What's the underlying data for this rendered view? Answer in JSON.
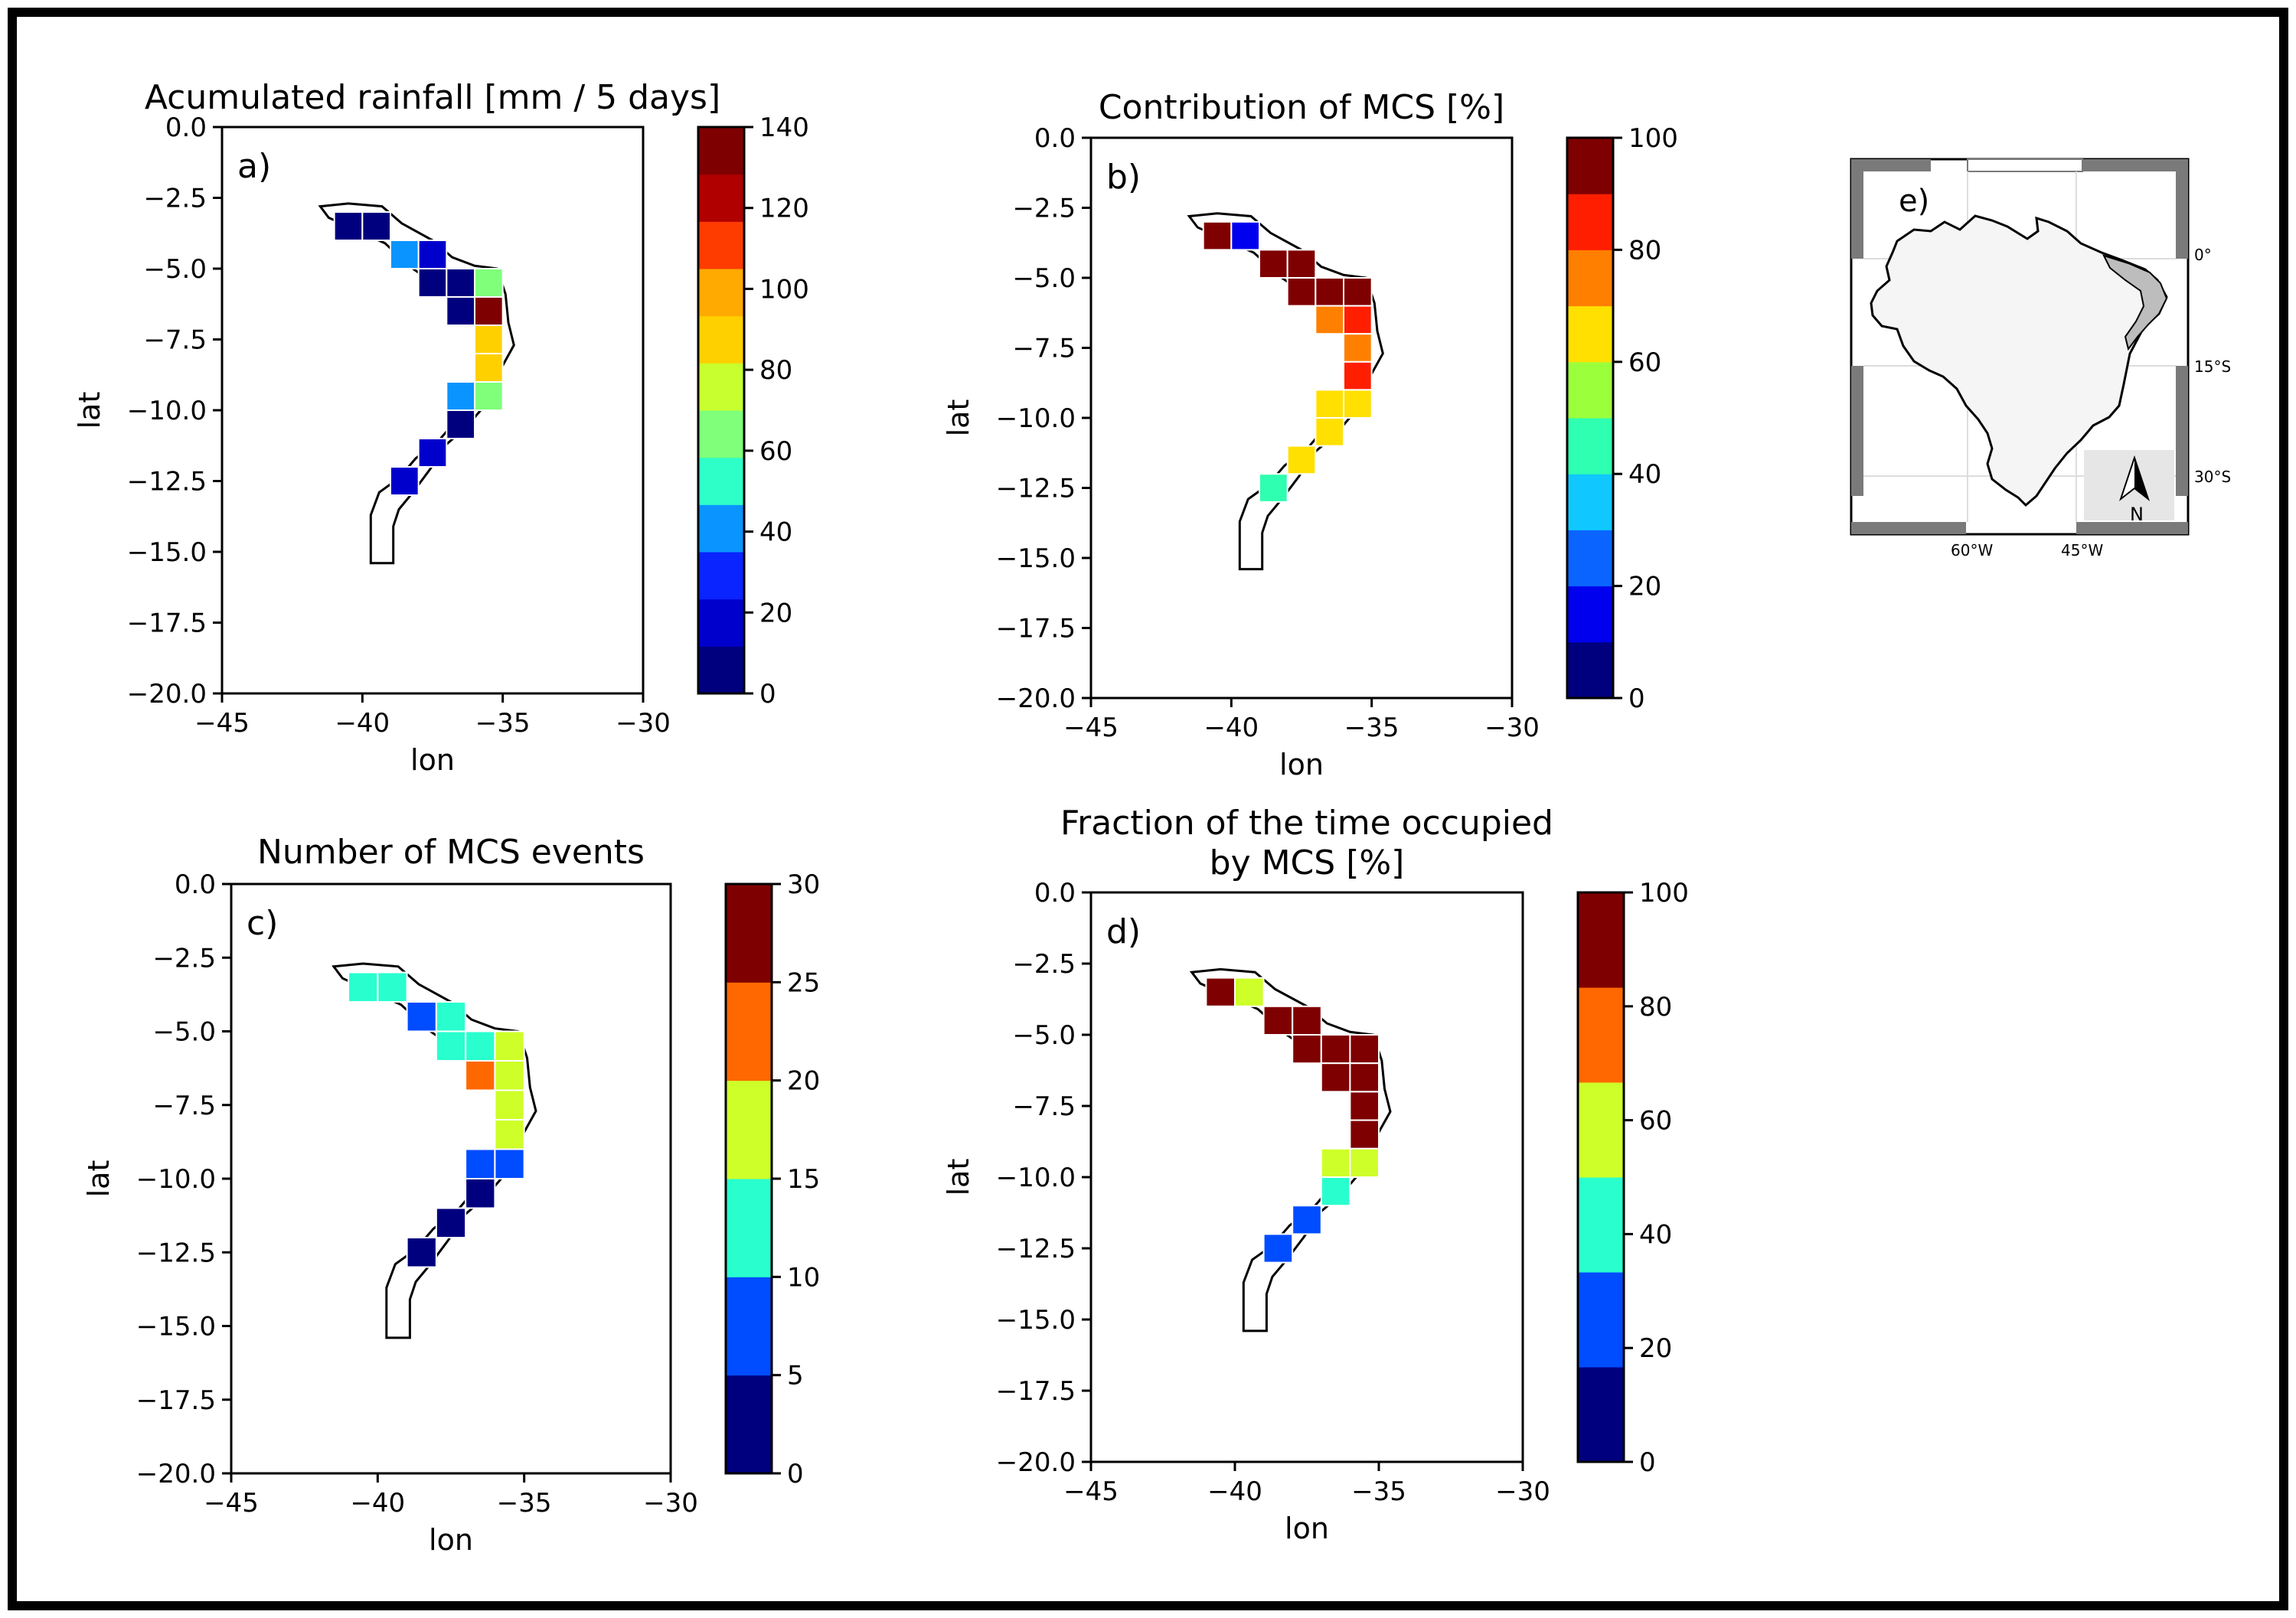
{
  "figure_border_color": "#000000",
  "chart_data": [
    {
      "id": "a",
      "type": "heatmap",
      "title": "Acumulated rainfall [mm / 5 days]",
      "panel_label": "a)",
      "xlabel": "lon",
      "ylabel": "lat",
      "xlim": [
        -45,
        -30
      ],
      "ylim": [
        -20,
        0
      ],
      "xticks": [
        -45,
        -40,
        -35,
        -30
      ],
      "xtick_labels": [
        "−45",
        "−40",
        "−35",
        "−30"
      ],
      "yticks": [
        0,
        -2.5,
        -5,
        -7.5,
        -10,
        -12.5,
        -15,
        -17.5,
        -20
      ],
      "ytick_labels": [
        "0.0",
        "−2.5",
        "−5.0",
        "−7.5",
        "−10.0",
        "−12.5",
        "−15.0",
        "−17.5",
        "−20.0"
      ],
      "colorbar": {
        "levels": [
          0,
          20,
          40,
          60,
          80,
          100,
          120,
          140
        ],
        "labels": [
          "0",
          "20",
          "40",
          "60",
          "80",
          "100",
          "120",
          "140"
        ],
        "colors": [
          "#00007f",
          "#0000cc",
          "#0a24ff",
          "#0a94ff",
          "#2effc8",
          "#7fff7a",
          "#c8ff2e",
          "#ffd000",
          "#ffaa00",
          "#ff3c00",
          "#b00000",
          "#7f0000"
        ]
      },
      "cells": [
        {
          "lon": -40.5,
          "lat": -3.5,
          "value": 5
        },
        {
          "lon": -39.5,
          "lat": -3.5,
          "value": 5
        },
        {
          "lon": -38.5,
          "lat": -4.5,
          "value": 45
        },
        {
          "lon": -37.5,
          "lat": -4.5,
          "value": 15
        },
        {
          "lon": -37.5,
          "lat": -5.5,
          "value": 5
        },
        {
          "lon": -36.5,
          "lat": -5.5,
          "value": 5
        },
        {
          "lon": -35.5,
          "lat": -5.5,
          "value": 65
        },
        {
          "lon": -36.5,
          "lat": -6.5,
          "value": 5
        },
        {
          "lon": -35.5,
          "lat": -6.5,
          "value": 130
        },
        {
          "lon": -35.5,
          "lat": -7.5,
          "value": 85
        },
        {
          "lon": -35.5,
          "lat": -8.5,
          "value": 85
        },
        {
          "lon": -36.5,
          "lat": -9.5,
          "value": 45
        },
        {
          "lon": -35.5,
          "lat": -9.5,
          "value": 65
        },
        {
          "lon": -36.5,
          "lat": -10.5,
          "value": 5
        },
        {
          "lon": -37.5,
          "lat": -11.5,
          "value": 15
        },
        {
          "lon": -38.5,
          "lat": -12.5,
          "value": 15
        }
      ]
    },
    {
      "id": "b",
      "type": "heatmap",
      "title": "Contribution of MCS [%]",
      "panel_label": "b)",
      "xlabel": "lon",
      "ylabel": "lat",
      "xlim": [
        -45,
        -30
      ],
      "ylim": [
        -20,
        0
      ],
      "xticks": [
        -45,
        -40,
        -35,
        -30
      ],
      "xtick_labels": [
        "−45",
        "−40",
        "−35",
        "−30"
      ],
      "yticks": [
        0,
        -2.5,
        -5,
        -7.5,
        -10,
        -12.5,
        -15,
        -17.5,
        -20
      ],
      "ytick_labels": [
        "0.0",
        "−2.5",
        "−5.0",
        "−7.5",
        "−10.0",
        "−12.5",
        "−15.0",
        "−17.5",
        "−20.0"
      ],
      "colorbar": {
        "levels": [
          0,
          20,
          40,
          60,
          80,
          100
        ],
        "labels": [
          "0",
          "20",
          "40",
          "60",
          "80",
          "100"
        ],
        "colors": [
          "#00007f",
          "#0000ee",
          "#0a64ff",
          "#10c8ff",
          "#2effb0",
          "#9cff3c",
          "#ffe000",
          "#ff7f00",
          "#ff1e00",
          "#7f0000"
        ]
      },
      "cells": [
        {
          "lon": -40.5,
          "lat": -3.5,
          "value": 95
        },
        {
          "lon": -39.5,
          "lat": -3.5,
          "value": 15
        },
        {
          "lon": -38.5,
          "lat": -4.5,
          "value": 95
        },
        {
          "lon": -37.5,
          "lat": -4.5,
          "value": 95
        },
        {
          "lon": -37.5,
          "lat": -5.5,
          "value": 95
        },
        {
          "lon": -36.5,
          "lat": -5.5,
          "value": 95
        },
        {
          "lon": -35.5,
          "lat": -5.5,
          "value": 95
        },
        {
          "lon": -36.5,
          "lat": -6.5,
          "value": 75
        },
        {
          "lon": -35.5,
          "lat": -6.5,
          "value": 85
        },
        {
          "lon": -35.5,
          "lat": -7.5,
          "value": 75
        },
        {
          "lon": -35.5,
          "lat": -8.5,
          "value": 85
        },
        {
          "lon": -36.5,
          "lat": -9.5,
          "value": 65
        },
        {
          "lon": -35.5,
          "lat": -9.5,
          "value": 65
        },
        {
          "lon": -36.5,
          "lat": -10.5,
          "value": 65
        },
        {
          "lon": -37.5,
          "lat": -11.5,
          "value": 65
        },
        {
          "lon": -38.5,
          "lat": -12.5,
          "value": 45
        }
      ]
    },
    {
      "id": "c",
      "type": "heatmap",
      "title": "Number of MCS events",
      "panel_label": "c)",
      "xlabel": "lon",
      "ylabel": "lat",
      "xlim": [
        -45,
        -30
      ],
      "ylim": [
        -20,
        0
      ],
      "xticks": [
        -45,
        -40,
        -35,
        -30
      ],
      "xtick_labels": [
        "−45",
        "−40",
        "−35",
        "−30"
      ],
      "yticks": [
        0,
        -2.5,
        -5,
        -7.5,
        -10,
        -12.5,
        -15,
        -17.5,
        -20
      ],
      "ytick_labels": [
        "0.0",
        "−2.5",
        "−5.0",
        "−7.5",
        "−10.0",
        "−12.5",
        "−15.0",
        "−17.5",
        "−20.0"
      ],
      "colorbar": {
        "levels": [
          0,
          5,
          10,
          15,
          20,
          25,
          30
        ],
        "labels": [
          "0",
          "5",
          "10",
          "15",
          "20",
          "25",
          "30"
        ],
        "colors": [
          "#00007f",
          "#004cff",
          "#29ffce",
          "#ceff29",
          "#ff6800",
          "#7f0000"
        ]
      },
      "cells": [
        {
          "lon": -40.5,
          "lat": -3.5,
          "value": 12
        },
        {
          "lon": -39.5,
          "lat": -3.5,
          "value": 12
        },
        {
          "lon": -38.5,
          "lat": -4.5,
          "value": 7
        },
        {
          "lon": -37.5,
          "lat": -4.5,
          "value": 12
        },
        {
          "lon": -37.5,
          "lat": -5.5,
          "value": 12
        },
        {
          "lon": -36.5,
          "lat": -5.5,
          "value": 12
        },
        {
          "lon": -35.5,
          "lat": -5.5,
          "value": 17
        },
        {
          "lon": -36.5,
          "lat": -6.5,
          "value": 22
        },
        {
          "lon": -35.5,
          "lat": -6.5,
          "value": 17
        },
        {
          "lon": -35.5,
          "lat": -7.5,
          "value": 17
        },
        {
          "lon": -35.5,
          "lat": -8.5,
          "value": 17
        },
        {
          "lon": -36.5,
          "lat": -9.5,
          "value": 7
        },
        {
          "lon": -35.5,
          "lat": -9.5,
          "value": 7
        },
        {
          "lon": -36.5,
          "lat": -10.5,
          "value": 2
        },
        {
          "lon": -37.5,
          "lat": -11.5,
          "value": 2
        },
        {
          "lon": -38.5,
          "lat": -12.5,
          "value": 2
        }
      ]
    },
    {
      "id": "d",
      "type": "heatmap",
      "title": "Fraction of the time occupied\nby MCS [%]",
      "panel_label": "d)",
      "xlabel": "lon",
      "ylabel": "lat",
      "xlim": [
        -45,
        -30
      ],
      "ylim": [
        -20,
        0
      ],
      "xticks": [
        -45,
        -40,
        -35,
        -30
      ],
      "xtick_labels": [
        "−45",
        "−40",
        "−35",
        "−30"
      ],
      "yticks": [
        0,
        -2.5,
        -5,
        -7.5,
        -10,
        -12.5,
        -15,
        -17.5,
        -20
      ],
      "ytick_labels": [
        "0.0",
        "−2.5",
        "−5.0",
        "−7.5",
        "−10.0",
        "−12.5",
        "−15.0",
        "−17.5",
        "−20.0"
      ],
      "colorbar": {
        "levels": [
          0,
          20,
          40,
          60,
          80,
          100
        ],
        "labels": [
          "0",
          "20",
          "40",
          "60",
          "80",
          "100"
        ],
        "colors": [
          "#00007f",
          "#004cff",
          "#29ffce",
          "#ceff29",
          "#ff6800",
          "#7f0000"
        ]
      },
      "cells": [
        {
          "lon": -40.5,
          "lat": -3.5,
          "value": 95
        },
        {
          "lon": -39.5,
          "lat": -3.5,
          "value": 65
        },
        {
          "lon": -38.5,
          "lat": -4.5,
          "value": 85
        },
        {
          "lon": -37.5,
          "lat": -4.5,
          "value": 85
        },
        {
          "lon": -37.5,
          "lat": -5.5,
          "value": 95
        },
        {
          "lon": -36.5,
          "lat": -5.5,
          "value": 95
        },
        {
          "lon": -35.5,
          "lat": -5.5,
          "value": 95
        },
        {
          "lon": -36.5,
          "lat": -6.5,
          "value": 85
        },
        {
          "lon": -35.5,
          "lat": -6.5,
          "value": 85
        },
        {
          "lon": -35.5,
          "lat": -7.5,
          "value": 85
        },
        {
          "lon": -35.5,
          "lat": -8.5,
          "value": 85
        },
        {
          "lon": -36.5,
          "lat": -9.5,
          "value": 65
        },
        {
          "lon": -35.5,
          "lat": -9.5,
          "value": 65
        },
        {
          "lon": -36.5,
          "lat": -10.5,
          "value": 45
        },
        {
          "lon": -37.5,
          "lat": -11.5,
          "value": 25
        },
        {
          "lon": -38.5,
          "lat": -12.5,
          "value": 25
        }
      ]
    }
  ],
  "region_outline": [
    [
      -41.5,
      -2.8
    ],
    [
      -40.5,
      -2.7
    ],
    [
      -39.3,
      -2.8
    ],
    [
      -38.6,
      -3.4
    ],
    [
      -37.5,
      -4.0
    ],
    [
      -36.8,
      -4.6
    ],
    [
      -36.0,
      -4.9
    ],
    [
      -35.2,
      -5.0
    ],
    [
      -34.9,
      -5.9
    ],
    [
      -34.8,
      -6.9
    ],
    [
      -34.6,
      -7.7
    ],
    [
      -35.1,
      -8.6
    ],
    [
      -35.3,
      -9.5
    ],
    [
      -35.7,
      -9.9
    ],
    [
      -36.3,
      -10.6
    ],
    [
      -37.0,
      -11.2
    ],
    [
      -37.6,
      -12.1
    ],
    [
      -38.2,
      -12.9
    ],
    [
      -38.7,
      -13.5
    ],
    [
      -38.9,
      -14.1
    ],
    [
      -38.9,
      -15.4
    ],
    [
      -39.7,
      -15.4
    ],
    [
      -39.7,
      -13.7
    ],
    [
      -39.4,
      -12.9
    ],
    [
      -38.7,
      -12.4
    ],
    [
      -38.1,
      -11.7
    ],
    [
      -37.3,
      -11.1
    ],
    [
      -36.7,
      -10.4
    ],
    [
      -36.1,
      -9.7
    ],
    [
      -35.9,
      -8.9
    ],
    [
      -35.8,
      -7.6
    ],
    [
      -35.9,
      -6.9
    ],
    [
      -36.4,
      -6.1
    ],
    [
      -37.2,
      -5.7
    ],
    [
      -38.2,
      -5.0
    ],
    [
      -39.2,
      -4.1
    ],
    [
      -40.3,
      -3.6
    ],
    [
      -41.2,
      -3.2
    ],
    [
      -41.5,
      -2.8
    ]
  ],
  "location_map": {
    "panel_label": "e)",
    "lat_labels": [
      "0°",
      "15°S",
      "30°S"
    ],
    "lon_labels": [
      "60°W",
      "45°W"
    ],
    "north_label": "N",
    "land_color": "#f5f5f5",
    "region_color": "#bdbdbd",
    "frame_color": "#7a7a7a"
  }
}
